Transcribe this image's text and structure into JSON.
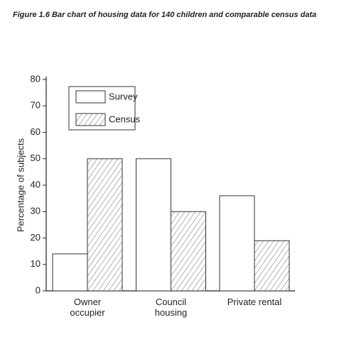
{
  "chart_data": {
    "type": "bar",
    "title": "Figure 1.6 Bar chart of housing data for 140 children and comparable census data",
    "ylabel": "Percentage of subjects",
    "categories": [
      "Owner occupier",
      "Council housing",
      "Private rental"
    ],
    "series": [
      {
        "name": "Survey",
        "color": "#ffffff",
        "hatch": false,
        "values": [
          14,
          50,
          36
        ]
      },
      {
        "name": "Census",
        "color": "#444444",
        "hatch": true,
        "values": [
          50,
          30,
          19
        ]
      }
    ],
    "ylim": [
      0,
      80
    ],
    "yticks": [
      0,
      10,
      20,
      30,
      40,
      50,
      60,
      70,
      80
    ],
    "legend": "upper left",
    "grid": false
  }
}
